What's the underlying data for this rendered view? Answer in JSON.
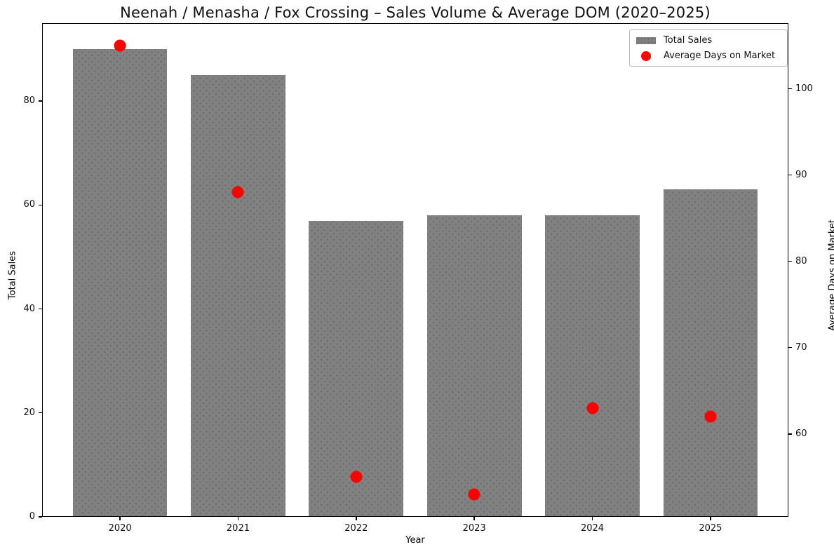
{
  "title": "Neenah / Menasha / Fox Crossing – Sales Volume & Average DOM (2020–2025)",
  "chart_data": {
    "type": "combo",
    "categories": [
      "2020",
      "2021",
      "2022",
      "2023",
      "2024",
      "2025"
    ],
    "series": [
      {
        "name": "Total Sales",
        "type": "bar",
        "axis": "left",
        "color": "#818181",
        "values": [
          90,
          85,
          57,
          58,
          58,
          63
        ]
      },
      {
        "name": "Average Days on Market",
        "type": "scatter",
        "axis": "right",
        "color": "#ff0000",
        "values": [
          105,
          88,
          55,
          53,
          63,
          62
        ]
      }
    ],
    "xlabel": "Year",
    "ylabel_left": "Total Sales",
    "ylabel_right": "Average Days on Market",
    "ylim_left": [
      0,
      95
    ],
    "ylim_right": [
      50.4,
      107.6
    ],
    "yticks_left": [
      0,
      20,
      40,
      60,
      80
    ],
    "yticks_right": [
      60,
      70,
      80,
      90,
      100
    ],
    "bar_width_fraction": 0.8,
    "grid": false,
    "legend_position": "upper right",
    "background": "#ffffff"
  }
}
